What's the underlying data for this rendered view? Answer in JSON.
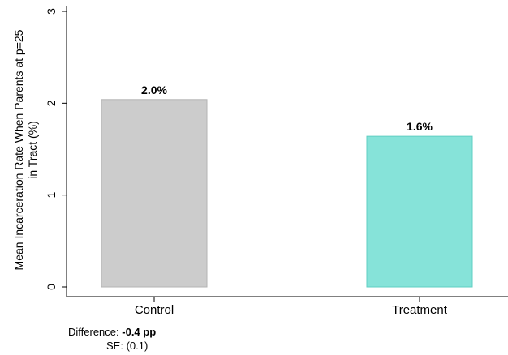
{
  "chart_data": {
    "type": "bar",
    "categories": [
      "Control",
      "Treatment"
    ],
    "values": [
      2.04,
      1.64
    ],
    "data_labels": [
      "2.0%",
      "1.6%"
    ],
    "colors": [
      "#cccccc",
      "#86e3d9"
    ],
    "edge_colors": [
      "#b3b3b3",
      "#5fcfc3"
    ],
    "ylabel_lines": [
      "Mean Incarceration Rate When Parents at p=25",
      "in Tract (%)"
    ],
    "xlabel": "",
    "title": "",
    "ylim": [
      0,
      3
    ],
    "yticks": [
      0,
      1,
      2,
      3
    ],
    "ytick_labels": [
      "0",
      "1",
      "2",
      "3"
    ],
    "grid": false
  },
  "footnote": {
    "difference_label": "Difference:",
    "difference_value": "-0.4 pp",
    "se_label": "SE:",
    "se_value": "(0.1)"
  }
}
